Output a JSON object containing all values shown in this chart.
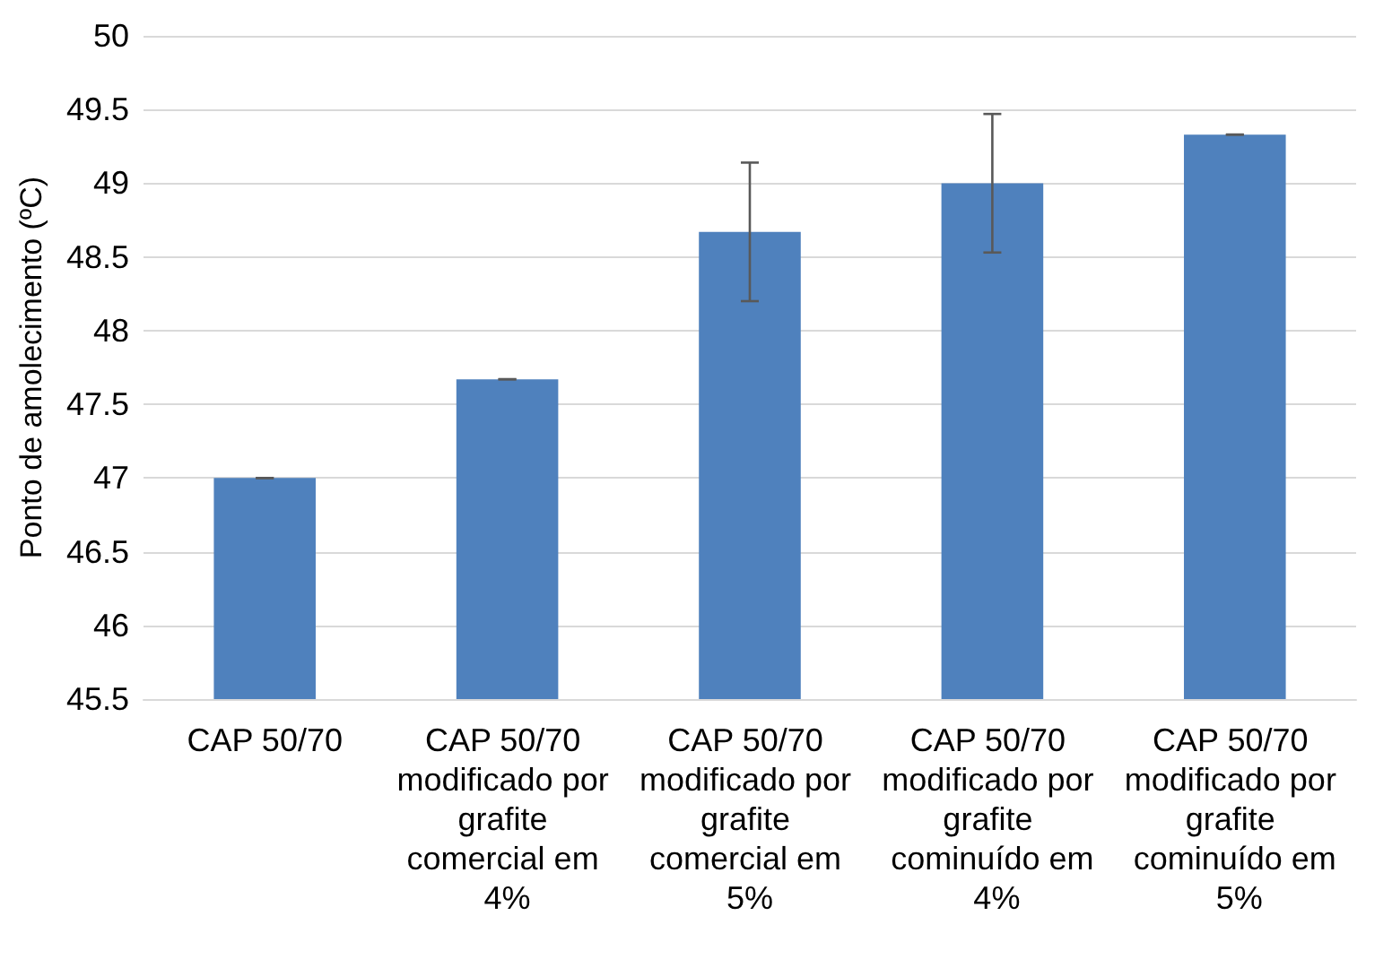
{
  "chart_data": {
    "type": "bar",
    "ylabel": "Ponto de amolecimento (ºC)",
    "categories": [
      "CAP 50/70",
      "CAP 50/70 modificado por grafite comercial em 4%",
      "CAP 50/70 modificado por grafite comercial em 5%",
      "CAP 50/70 modificado por grafite cominuído em 4%",
      "CAP 50/70 modificado por grafite cominuído em 5%"
    ],
    "values": [
      47.0,
      47.67,
      48.67,
      49.0,
      49.33
    ],
    "errors": [
      0,
      0,
      0.47,
      0.47,
      0
    ],
    "color": "#4f81bd",
    "ylim": [
      45.5,
      50
    ],
    "yticks": [
      45.5,
      46,
      46.5,
      47,
      47.5,
      48,
      48.5,
      49,
      49.5,
      50
    ],
    "grid": "y"
  }
}
